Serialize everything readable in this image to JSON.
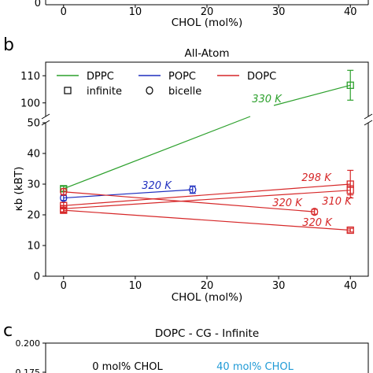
{
  "top_panel": {
    "xlabel": "CHOL (mol%)",
    "xticks": [
      "0",
      "10",
      "20",
      "30",
      "40"
    ]
  },
  "chart_data": [
    {
      "panel": "b",
      "type": "line",
      "title": "All-Atom",
      "xlabel": "CHOL (mol%)",
      "ylabel": "κb (kBT)",
      "xlim": [
        -2.5,
        42.5
      ],
      "ylim_lower": [
        0,
        50
      ],
      "ylim_upper": [
        95,
        115
      ],
      "broken_y_axis": true,
      "xticks": [
        "0",
        "10",
        "20",
        "30",
        "40"
      ],
      "yticks_lower": [
        "0",
        "10",
        "20",
        "30",
        "40",
        "50"
      ],
      "yticks_upper": [
        "100",
        "110"
      ],
      "grid": false,
      "legend": {
        "placement": "top",
        "lipid_entries": [
          {
            "label": "DPPC",
            "color": "#2ca02c"
          },
          {
            "label": "POPC",
            "color": "#1f2fbf"
          },
          {
            "label": "DOPC",
            "color": "#d62728"
          }
        ],
        "marker_entries": [
          {
            "label": "infinite",
            "marker": "square"
          },
          {
            "label": "bicelle",
            "marker": "circle"
          }
        ]
      },
      "series": [
        {
          "lipid": "DPPC",
          "geometry": "infinite",
          "temperature": "330 K",
          "color": "#2ca02c",
          "x": [
            0,
            40
          ],
          "y": [
            28.5,
            106.5
          ],
          "yerr": [
            0.8,
            5.5
          ]
        },
        {
          "lipid": "POPC",
          "geometry": "bicelle",
          "temperature": "320 K",
          "color": "#1f2fbf",
          "x": [
            0,
            18
          ],
          "y": [
            25.5,
            28.2
          ],
          "yerr": [
            0.8,
            1.2
          ]
        },
        {
          "lipid": "DOPC",
          "geometry": "infinite",
          "temperature": "298 K",
          "color": "#d62728",
          "x": [
            0,
            40
          ],
          "y": [
            23,
            30
          ],
          "yerr": [
            1.0,
            4.5
          ]
        },
        {
          "lipid": "DOPC",
          "geometry": "infinite",
          "temperature": "310 K",
          "color": "#d62728",
          "x": [
            0,
            40
          ],
          "y": [
            22,
            28
          ],
          "yerr": [
            1.0,
            1.5
          ]
        },
        {
          "lipid": "DOPC",
          "geometry": "infinite",
          "temperature": "320 K",
          "color": "#d62728",
          "x": [
            0,
            40
          ],
          "y": [
            21.5,
            15
          ],
          "yerr": [
            0.8,
            0.6
          ]
        },
        {
          "lipid": "DOPC",
          "geometry": "bicelle",
          "temperature": "320 K",
          "color": "#d62728",
          "x": [
            0,
            35
          ],
          "y": [
            27.5,
            21
          ],
          "yerr": [
            1.0,
            0.8
          ]
        }
      ]
    },
    {
      "panel": "c",
      "type": "line",
      "title": "DOPC - CG - Infinite",
      "yticks": [
        "0.200",
        "0.175"
      ],
      "annotations": [
        {
          "text": "0 mol% CHOL",
          "color": "#000000"
        },
        {
          "text": "40 mol% CHOL",
          "color": "#1f9ad6"
        }
      ]
    }
  ]
}
